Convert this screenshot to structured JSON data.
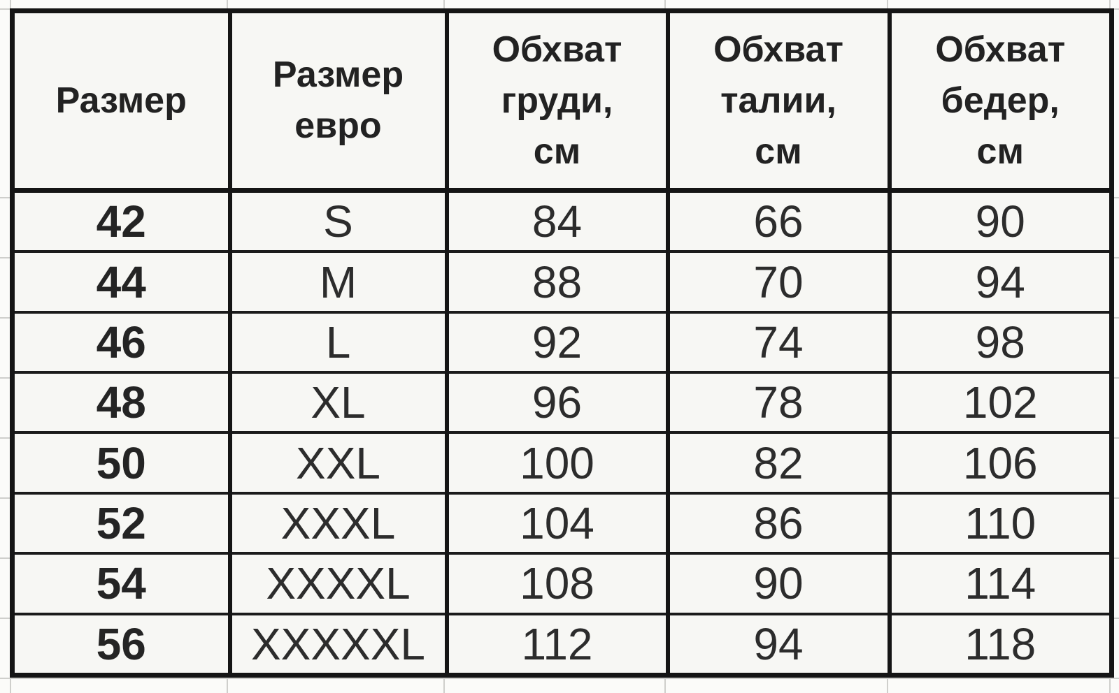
{
  "colors": {
    "table_border": "#151515",
    "row_separator": "#1b1b1b",
    "cell_background": "#f7f7f4",
    "page_background": "#fbfbf9",
    "faint_gridline": "#cfcfcc",
    "text": "#2c2c2c"
  },
  "table": {
    "headers": [
      {
        "id": "size",
        "label": "Размер"
      },
      {
        "id": "size_euro",
        "label": "Размер\nевро"
      },
      {
        "id": "chest",
        "label": "Обхват\nгруди,\nсм"
      },
      {
        "id": "waist",
        "label": "Обхват\nталии,\nсм"
      },
      {
        "id": "hips",
        "label": "Обхват\nбедер,\nсм"
      }
    ],
    "rows": [
      {
        "size": "42",
        "size_euro": "S",
        "chest": "84",
        "waist": "66",
        "hips": "90"
      },
      {
        "size": "44",
        "size_euro": "M",
        "chest": "88",
        "waist": "70",
        "hips": "94"
      },
      {
        "size": "46",
        "size_euro": "L",
        "chest": "92",
        "waist": "74",
        "hips": "98"
      },
      {
        "size": "48",
        "size_euro": "XL",
        "chest": "96",
        "waist": "78",
        "hips": "102"
      },
      {
        "size": "50",
        "size_euro": "XXL",
        "chest": "100",
        "waist": "82",
        "hips": "106"
      },
      {
        "size": "52",
        "size_euro": "XXXL",
        "chest": "104",
        "waist": "86",
        "hips": "110"
      },
      {
        "size": "54",
        "size_euro": "XXXXL",
        "chest": "108",
        "waist": "90",
        "hips": "114"
      },
      {
        "size": "56",
        "size_euro": "XXXXXL",
        "chest": "112",
        "waist": "94",
        "hips": "118"
      }
    ]
  },
  "chart_data": {
    "type": "table",
    "columns": [
      "Размер",
      "Размер евро",
      "Обхват груди, см",
      "Обхват талии, см",
      "Обхват бедер, см"
    ],
    "rows": [
      [
        "42",
        "S",
        84,
        66,
        90
      ],
      [
        "44",
        "M",
        88,
        70,
        94
      ],
      [
        "46",
        "L",
        92,
        74,
        98
      ],
      [
        "48",
        "XL",
        96,
        78,
        102
      ],
      [
        "50",
        "XXL",
        100,
        82,
        106
      ],
      [
        "52",
        "XXXL",
        104,
        86,
        110
      ],
      [
        "54",
        "XXXXL",
        108,
        90,
        114
      ],
      [
        "56",
        "XXXXXL",
        112,
        94,
        118
      ]
    ],
    "layout_hints": {
      "header_rows": 1,
      "bold_columns": [
        0
      ],
      "grid": "on",
      "style": "spreadsheet with bold black table borders"
    }
  }
}
